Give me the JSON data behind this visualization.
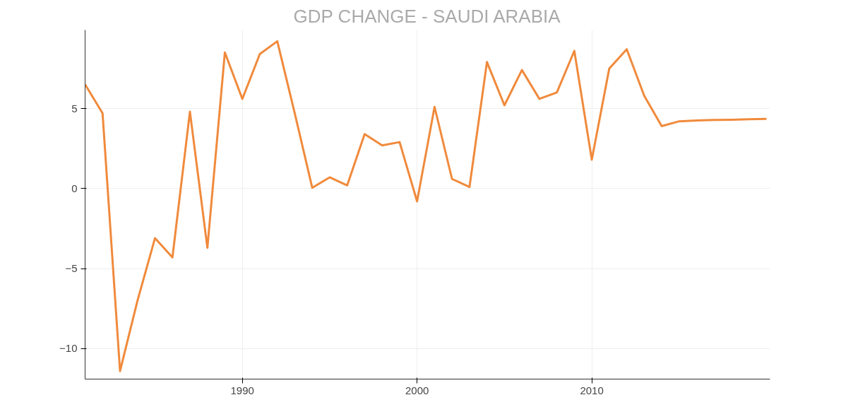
{
  "chart_data": {
    "type": "line",
    "title": "GDP CHANGE - SAUDI ARABIA",
    "x": [
      1981,
      1982,
      1983,
      1984,
      1985,
      1986,
      1987,
      1988,
      1989,
      1990,
      1991,
      1992,
      1993,
      1994,
      1995,
      1996,
      1997,
      1998,
      1999,
      2000,
      2001,
      2002,
      2003,
      2004,
      2005,
      2006,
      2007,
      2008,
      2009,
      2010,
      2011,
      2012,
      2013,
      2014,
      2015,
      2016,
      2017,
      2018,
      2019,
      2020
    ],
    "series": [
      {
        "color": "#f08a3c",
        "values": [
          6.5,
          4.7,
          -11.4,
          -7,
          -3.1,
          -4.3,
          4.8,
          -3.7,
          8.5,
          5.6,
          8.4,
          9.2,
          4.7,
          0.05,
          0.7,
          0.2,
          3.4,
          2.7,
          2.9,
          -0.8,
          5.1,
          0.6,
          0.1,
          7.9,
          5.2,
          7.4,
          5.6,
          6.0,
          8.6,
          1.8,
          7.5,
          8.7,
          5.8,
          3.9,
          4.2,
          4.25,
          4.28,
          4.3,
          4.33,
          4.35
        ]
      }
    ],
    "xlim": [
      1981,
      2020.2
    ],
    "ylim": [
      -11.9,
      9.9
    ],
    "xticks": [
      1990,
      2000,
      2010
    ],
    "yticks": [
      -10,
      -5,
      0,
      5
    ],
    "grid": true,
    "marker": "none",
    "line_style": "solid"
  }
}
